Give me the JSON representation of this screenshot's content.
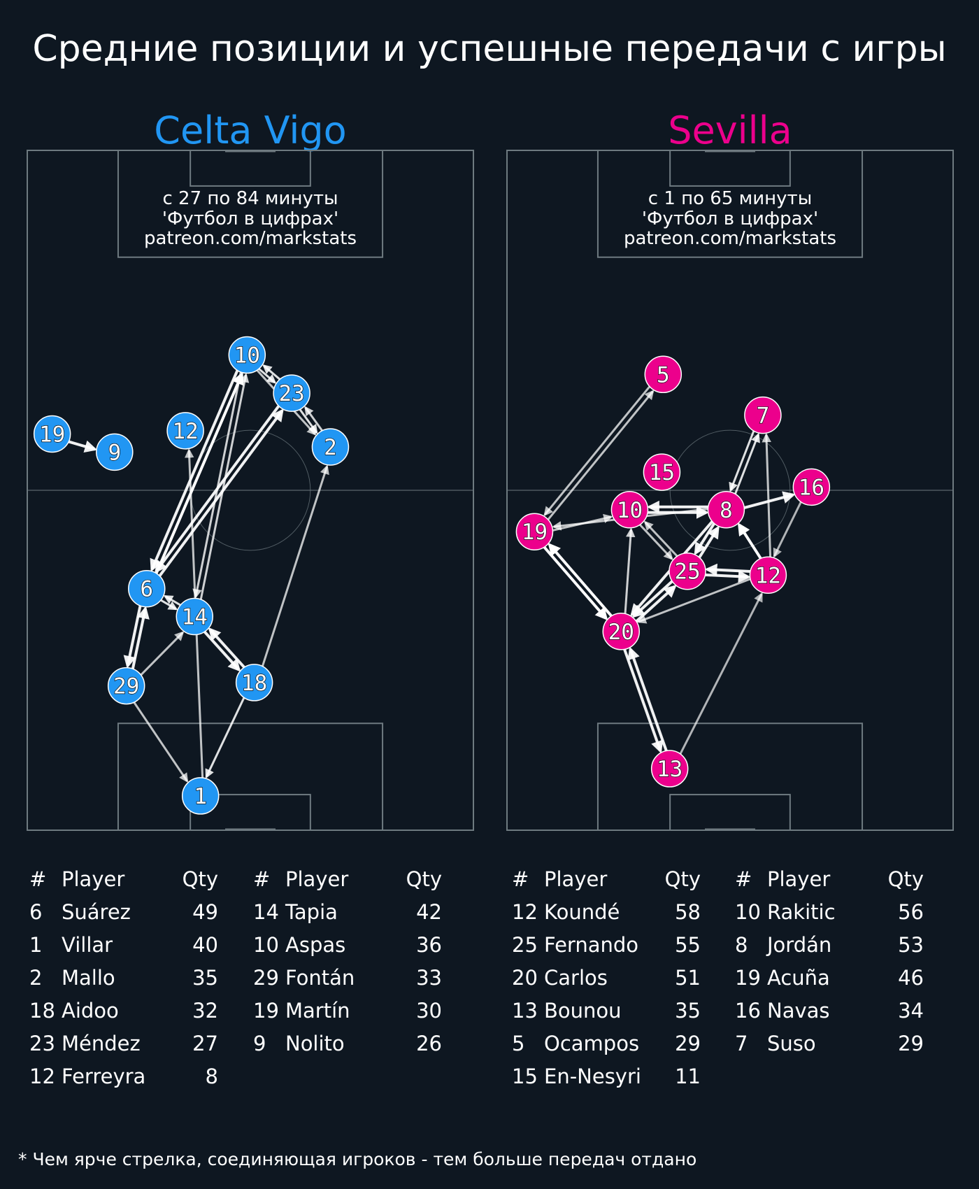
{
  "title": "Средние позиции и успешные передачи с игры",
  "footnote": "* Чем ярче стрелка, соединяющая игроков - тем больше передач отдано",
  "colors": {
    "background": "#0e1721",
    "pitch_lines": "#6e7a80",
    "celta": "#2196f3",
    "sevilla": "#ec008c"
  },
  "chart_data": {
    "type": "pass-network",
    "pitch": {
      "length": 105,
      "width": 68
    },
    "teams": [
      {
        "name": "Celta Vigo",
        "color": "#2196f3",
        "period": "с 27 по 84 минуты",
        "credit_line1": "'Футбол в цифрах'",
        "credit_line2": "patreon.com/markstats",
        "players": [
          {
            "num": "10",
            "x": 33.5,
            "y": 73.4
          },
          {
            "num": "23",
            "x": 40.3,
            "y": 67.5
          },
          {
            "num": "2",
            "x": 46.2,
            "y": 59.2
          },
          {
            "num": "12",
            "x": 24.1,
            "y": 61.7
          },
          {
            "num": "19",
            "x": 3.8,
            "y": 61.2
          },
          {
            "num": "9",
            "x": 13.3,
            "y": 58.4
          },
          {
            "num": "6",
            "x": 18.2,
            "y": 37.3
          },
          {
            "num": "14",
            "x": 25.5,
            "y": 33.0
          },
          {
            "num": "29",
            "x": 15.1,
            "y": 22.3
          },
          {
            "num": "18",
            "x": 34.6,
            "y": 22.8
          },
          {
            "num": "1",
            "x": 26.4,
            "y": 5.3
          }
        ],
        "passes": [
          {
            "from": "19",
            "to": "9",
            "strength": 0.9
          },
          {
            "from": "6",
            "to": "10",
            "strength": 1.0
          },
          {
            "from": "10",
            "to": "6",
            "strength": 0.9
          },
          {
            "from": "6",
            "to": "23",
            "strength": 0.9
          },
          {
            "from": "23",
            "to": "6",
            "strength": 0.9
          },
          {
            "from": "10",
            "to": "23",
            "strength": 0.8
          },
          {
            "from": "23",
            "to": "10",
            "strength": 0.8
          },
          {
            "from": "23",
            "to": "2",
            "strength": 0.8
          },
          {
            "from": "2",
            "to": "23",
            "strength": 0.7
          },
          {
            "from": "10",
            "to": "2",
            "strength": 0.6
          },
          {
            "from": "10",
            "to": "14",
            "strength": 0.7
          },
          {
            "from": "14",
            "to": "10",
            "strength": 0.7
          },
          {
            "from": "1",
            "to": "12",
            "strength": 0.6
          },
          {
            "from": "6",
            "to": "14",
            "strength": 0.8
          },
          {
            "from": "14",
            "to": "6",
            "strength": 0.8
          },
          {
            "from": "6",
            "to": "29",
            "strength": 0.9
          },
          {
            "from": "29",
            "to": "6",
            "strength": 0.9
          },
          {
            "from": "29",
            "to": "14",
            "strength": 0.6
          },
          {
            "from": "14",
            "to": "18",
            "strength": 0.9
          },
          {
            "from": "18",
            "to": "14",
            "strength": 0.9
          },
          {
            "from": "18",
            "to": "2",
            "strength": 0.6
          },
          {
            "from": "29",
            "to": "1",
            "strength": 0.6
          },
          {
            "from": "18",
            "to": "1",
            "strength": 0.8
          }
        ],
        "table_header": {
          "num": "#",
          "player": "Player",
          "qty": "Qty"
        },
        "table_col1": [
          {
            "num": "6",
            "player": "Suárez",
            "qty": "49"
          },
          {
            "num": "1",
            "player": "Villar",
            "qty": "40"
          },
          {
            "num": "2",
            "player": "Mallo",
            "qty": "35"
          },
          {
            "num": "18",
            "player": "Aidoo",
            "qty": "32"
          },
          {
            "num": "23",
            "player": "Méndez",
            "qty": "27"
          },
          {
            "num": "12",
            "player": "Ferreyra",
            "qty": "8"
          }
        ],
        "table_col2": [
          {
            "num": "14",
            "player": "Tapia",
            "qty": "42"
          },
          {
            "num": "10",
            "player": "Aspas",
            "qty": "36"
          },
          {
            "num": "29",
            "player": "Fontán",
            "qty": "33"
          },
          {
            "num": "19",
            "player": "Martín",
            "qty": "30"
          },
          {
            "num": "9",
            "player": "Nolito",
            "qty": "26"
          }
        ]
      },
      {
        "name": "Sevilla",
        "color": "#ec008c",
        "period": "с 1 по 65 минуты",
        "credit_line1": "'Футбол в цифрах'",
        "credit_line2": "patreon.com/markstats",
        "players": [
          {
            "num": "5",
            "x": 23.8,
            "y": 70.4
          },
          {
            "num": "7",
            "x": 39.0,
            "y": 64.1
          },
          {
            "num": "15",
            "x": 23.6,
            "y": 55.3
          },
          {
            "num": "16",
            "x": 46.4,
            "y": 53.0
          },
          {
            "num": "10",
            "x": 18.7,
            "y": 49.5
          },
          {
            "num": "8",
            "x": 33.4,
            "y": 49.5
          },
          {
            "num": "19",
            "x": 4.2,
            "y": 46.1
          },
          {
            "num": "25",
            "x": 27.5,
            "y": 40.0
          },
          {
            "num": "12",
            "x": 39.8,
            "y": 39.4
          },
          {
            "num": "20",
            "x": 17.4,
            "y": 30.7
          },
          {
            "num": "13",
            "x": 24.8,
            "y": 9.5
          }
        ],
        "passes": [
          {
            "from": "19",
            "to": "5",
            "strength": 0.6
          },
          {
            "from": "5",
            "to": "19",
            "strength": 0.6
          },
          {
            "from": "19",
            "to": "10",
            "strength": 0.6
          },
          {
            "from": "8",
            "to": "19",
            "strength": 0.6
          },
          {
            "from": "10",
            "to": "8",
            "strength": 0.9
          },
          {
            "from": "8",
            "to": "10",
            "strength": 0.9
          },
          {
            "from": "8",
            "to": "7",
            "strength": 0.8
          },
          {
            "from": "7",
            "to": "8",
            "strength": 0.8
          },
          {
            "from": "8",
            "to": "16",
            "strength": 0.9
          },
          {
            "from": "16",
            "to": "12",
            "strength": 0.5
          },
          {
            "from": "12",
            "to": "7",
            "strength": 0.6
          },
          {
            "from": "12",
            "to": "8",
            "strength": 1.0
          },
          {
            "from": "25",
            "to": "8",
            "strength": 0.9
          },
          {
            "from": "8",
            "to": "25",
            "strength": 0.9
          },
          {
            "from": "10",
            "to": "25",
            "strength": 0.6
          },
          {
            "from": "25",
            "to": "10",
            "strength": 0.6
          },
          {
            "from": "12",
            "to": "25",
            "strength": 0.9
          },
          {
            "from": "25",
            "to": "12",
            "strength": 0.9
          },
          {
            "from": "19",
            "to": "20",
            "strength": 1.0
          },
          {
            "from": "20",
            "to": "19",
            "strength": 1.0
          },
          {
            "from": "20",
            "to": "10",
            "strength": 0.7
          },
          {
            "from": "20",
            "to": "25",
            "strength": 0.9
          },
          {
            "from": "25",
            "to": "20",
            "strength": 0.9
          },
          {
            "from": "8",
            "to": "20",
            "strength": 0.9
          },
          {
            "from": "12",
            "to": "20",
            "strength": 0.6
          },
          {
            "from": "20",
            "to": "13",
            "strength": 0.9
          },
          {
            "from": "13",
            "to": "20",
            "strength": 0.9
          },
          {
            "from": "13",
            "to": "12",
            "strength": 0.5
          }
        ],
        "table_header": {
          "num": "#",
          "player": "Player",
          "qty": "Qty"
        },
        "table_col1": [
          {
            "num": "12",
            "player": "Koundé",
            "qty": "58"
          },
          {
            "num": "25",
            "player": "Fernando",
            "qty": "55"
          },
          {
            "num": "20",
            "player": "Carlos",
            "qty": "51"
          },
          {
            "num": "13",
            "player": "Bounou",
            "qty": "35"
          },
          {
            "num": "5",
            "player": "Ocampos",
            "qty": "29"
          },
          {
            "num": "15",
            "player": "En-Nesyri",
            "qty": "11"
          }
        ],
        "table_col2": [
          {
            "num": "10",
            "player": "Rakitic",
            "qty": "56"
          },
          {
            "num": "8",
            "player": "Jordán",
            "qty": "53"
          },
          {
            "num": "19",
            "player": "Acuña",
            "qty": "46"
          },
          {
            "num": "16",
            "player": "Navas",
            "qty": "34"
          },
          {
            "num": "7",
            "player": "Suso",
            "qty": "29"
          }
        ]
      }
    ]
  }
}
